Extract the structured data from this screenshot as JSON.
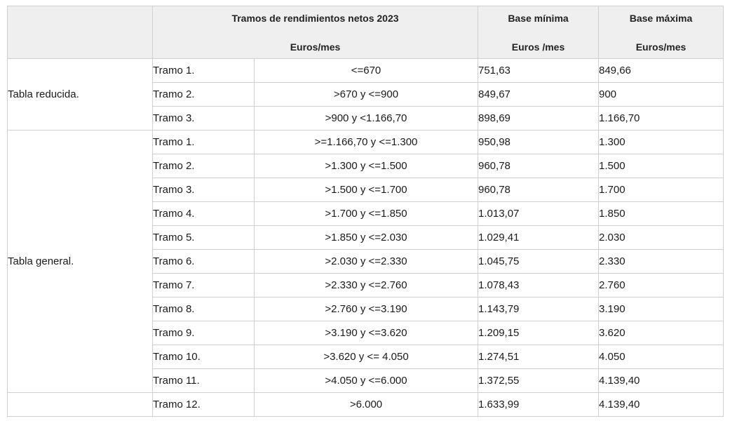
{
  "header": {
    "col_range_title": "Tramos de rendimientos netos 2023",
    "col_range_unit": "Euros/mes",
    "col_min_title": "Base mínima",
    "col_min_unit": "Euros /mes",
    "col_max_title": "Base máxima",
    "col_max_unit": "Euros/mes"
  },
  "groups": {
    "reducida": "Tabla reducida.",
    "general": "Tabla general."
  },
  "rows": [
    {
      "tramo": "Tramo 1.",
      "range": "<=670",
      "min": "751,63",
      "max": "849,66"
    },
    {
      "tramo": "Tramo 2.",
      "range": ">670 y <=900",
      "min": "849,67",
      "max": "900"
    },
    {
      "tramo": "Tramo 3.",
      "range": ">900 y <1.166,70",
      "min": "898,69",
      "max": "1.166,70"
    },
    {
      "tramo": "Tramo 1.",
      "range": ">=1.166,70 y <=1.300",
      "min": "950,98",
      "max": "1.300"
    },
    {
      "tramo": "Tramo 2.",
      "range": ">1.300 y <=1.500",
      "min": "960,78",
      "max": "1.500"
    },
    {
      "tramo": "Tramo 3.",
      "range": ">1.500 y <=1.700",
      "min": "960,78",
      "max": "1.700"
    },
    {
      "tramo": "Tramo 4.",
      "range": ">1.700 y <=1.850",
      "min": "1.013,07",
      "max": "1.850"
    },
    {
      "tramo": "Tramo 5.",
      "range": ">1.850 y <=2.030",
      "min": "1.029,41",
      "max": "2.030"
    },
    {
      "tramo": "Tramo 6.",
      "range": ">2.030 y <=2.330",
      "min": "1.045,75",
      "max": "2.330"
    },
    {
      "tramo": "Tramo 7.",
      "range": ">2.330 y <=2.760",
      "min": "1.078,43",
      "max": "2.760"
    },
    {
      "tramo": "Tramo 8.",
      "range": ">2.760 y <=3.190",
      "min": "1.143,79",
      "max": "3.190"
    },
    {
      "tramo": "Tramo 9.",
      "range": ">3.190 y <=3.620",
      "min": "1.209,15",
      "max": "3.620"
    },
    {
      "tramo": "Tramo 10.",
      "range": ">3.620 y <= 4.050",
      "min": "1.274,51",
      "max": "4.050"
    },
    {
      "tramo": "Tramo 11.",
      "range": ">4.050 y <=6.000",
      "min": "1.372,55",
      "max": "4.139,40"
    },
    {
      "tramo": "Tramo 12.",
      "range": ">6.000",
      "min": "1.633,99",
      "max": "4.139,40"
    }
  ]
}
